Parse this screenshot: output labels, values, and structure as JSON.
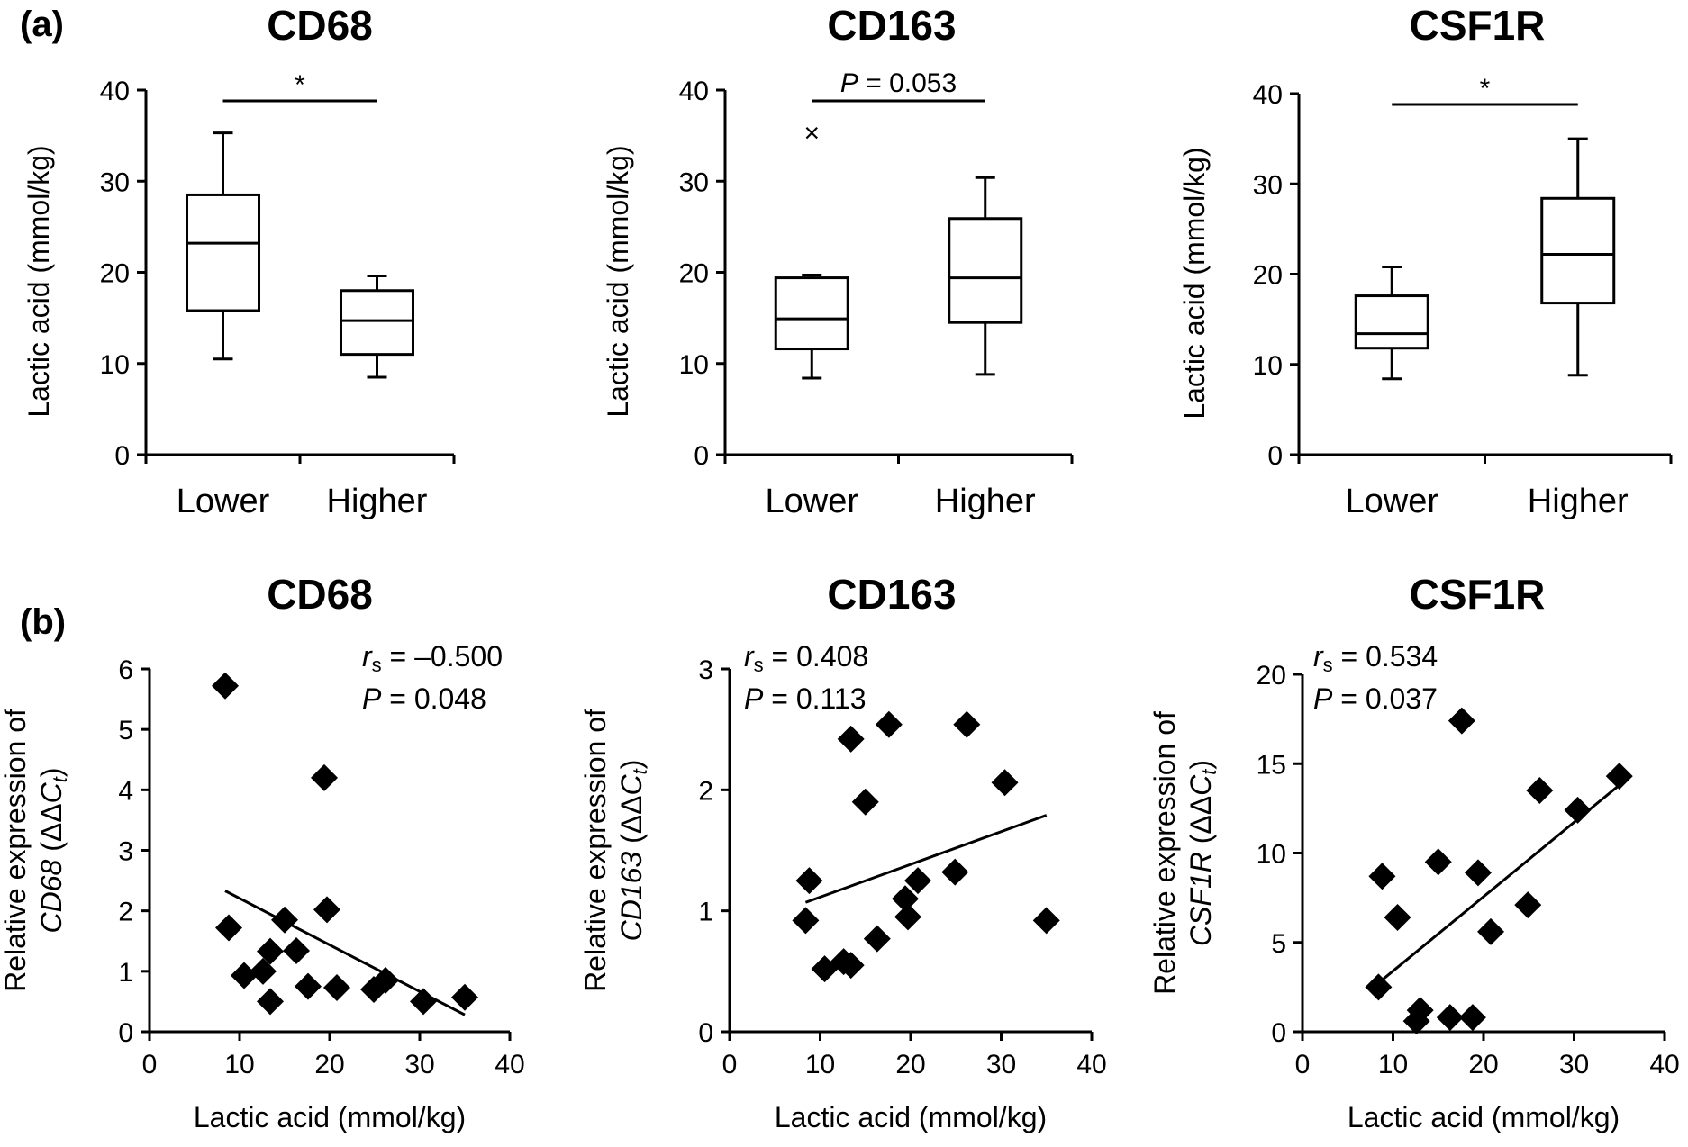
{
  "panel_labels": {
    "a": "(a)",
    "b": "(b)"
  },
  "chart_data": [
    {
      "type": "box",
      "panel": "(a)",
      "title": "CD68",
      "categories": [
        "Lower",
        "Higher"
      ],
      "ylabel": "Lactic acid (mmol/kg)",
      "ylim": [
        0,
        40
      ],
      "yticks": [
        0,
        10,
        20,
        30,
        40
      ],
      "boxes": [
        {
          "category": "Lower",
          "min": 10.5,
          "q1": 15.8,
          "median": 23.2,
          "q3": 28.5,
          "max": 35.3
        },
        {
          "category": "Higher",
          "min": 8.5,
          "q1": 11,
          "median": 14.7,
          "q3": 18,
          "max": 19.6
        }
      ],
      "outliers": [],
      "significance": "*"
    },
    {
      "type": "box",
      "panel": "(a)",
      "title": "CD163",
      "categories": [
        "Lower",
        "Higher"
      ],
      "ylabel": "Lactic acid (mmol/kg)",
      "ylim": [
        0,
        40
      ],
      "yticks": [
        0,
        10,
        20,
        30,
        40
      ],
      "boxes": [
        {
          "category": "Lower",
          "min": 8.4,
          "q1": 11.6,
          "median": 14.9,
          "q3": 19.4,
          "max": 19.7
        },
        {
          "category": "Higher",
          "min": 8.8,
          "q1": 14.5,
          "median": 19.4,
          "q3": 25.9,
          "max": 30.4
        }
      ],
      "outliers": [
        {
          "category": "Lower",
          "value": 35.3
        }
      ],
      "significance": "P = 0.053"
    },
    {
      "type": "box",
      "panel": "(a)",
      "title": "CSF1R",
      "categories": [
        "Lower",
        "Higher"
      ],
      "ylabel": "Lactic acid (mmol/kg)",
      "ylim": [
        0,
        40
      ],
      "yticks": [
        0,
        10,
        20,
        30,
        40
      ],
      "boxes": [
        {
          "category": "Lower",
          "min": 8.4,
          "q1": 11.8,
          "median": 13.4,
          "q3": 17.6,
          "max": 20.8
        },
        {
          "category": "Higher",
          "min": 8.8,
          "q1": 16.8,
          "median": 22.2,
          "q3": 28.4,
          "max": 35
        }
      ],
      "outliers": [],
      "significance": "*"
    },
    {
      "type": "scatter",
      "panel": "(b)",
      "title": "CD68",
      "xlabel": "Lactic acid (mmol/kg)",
      "ylabel_line1": "Relative expression of",
      "ylabel_gene": "CD68",
      "xlim": [
        0,
        40
      ],
      "xticks": [
        0,
        10,
        20,
        30,
        40
      ],
      "ylim": [
        0,
        6
      ],
      "yticks": [
        0,
        1,
        2,
        3,
        4,
        5,
        6
      ],
      "rs_value": "= –0.500",
      "p_value": "= 0.048",
      "points": [
        {
          "x": 8.4,
          "y": 5.72
        },
        {
          "x": 8.8,
          "y": 1.72
        },
        {
          "x": 10.5,
          "y": 0.93
        },
        {
          "x": 12.6,
          "y": 1.0
        },
        {
          "x": 13.4,
          "y": 0.5
        },
        {
          "x": 13.4,
          "y": 1.33
        },
        {
          "x": 15.0,
          "y": 1.85
        },
        {
          "x": 16.3,
          "y": 1.34
        },
        {
          "x": 17.6,
          "y": 0.75
        },
        {
          "x": 19.4,
          "y": 4.2
        },
        {
          "x": 19.7,
          "y": 2.02
        },
        {
          "x": 20.8,
          "y": 0.73
        },
        {
          "x": 24.9,
          "y": 0.7
        },
        {
          "x": 26.2,
          "y": 0.85
        },
        {
          "x": 30.4,
          "y": 0.5
        },
        {
          "x": 35.0,
          "y": 0.57
        }
      ],
      "trendline": [
        {
          "x": 8.4,
          "y": 2.33
        },
        {
          "x": 35.0,
          "y": 0.28
        }
      ]
    },
    {
      "type": "scatter",
      "panel": "(b)",
      "title": "CD163",
      "xlabel": "Lactic acid (mmol/kg)",
      "ylabel_line1": "Relative expression of",
      "ylabel_gene": "CD163",
      "xlim": [
        0,
        40
      ],
      "xticks": [
        0,
        10,
        20,
        30,
        40
      ],
      "ylim": [
        0,
        3
      ],
      "yticks": [
        0,
        1,
        2,
        3
      ],
      "rs_value": "= 0.408",
      "p_value": "= 0.113",
      "points": [
        {
          "x": 8.4,
          "y": 0.92
        },
        {
          "x": 8.8,
          "y": 1.25
        },
        {
          "x": 10.5,
          "y": 0.52
        },
        {
          "x": 12.6,
          "y": 0.58
        },
        {
          "x": 13.4,
          "y": 0.55
        },
        {
          "x": 13.4,
          "y": 2.42
        },
        {
          "x": 15.0,
          "y": 1.9
        },
        {
          "x": 16.3,
          "y": 0.77
        },
        {
          "x": 17.6,
          "y": 2.54
        },
        {
          "x": 19.4,
          "y": 1.1
        },
        {
          "x": 19.7,
          "y": 0.95
        },
        {
          "x": 20.8,
          "y": 1.25
        },
        {
          "x": 24.9,
          "y": 1.32
        },
        {
          "x": 26.2,
          "y": 2.54
        },
        {
          "x": 30.4,
          "y": 2.06
        },
        {
          "x": 35.0,
          "y": 0.92
        }
      ],
      "trendline": [
        {
          "x": 8.4,
          "y": 1.07
        },
        {
          "x": 35.0,
          "y": 1.79
        }
      ]
    },
    {
      "type": "scatter",
      "panel": "(b)",
      "title": "CSF1R",
      "xlabel": "Lactic acid (mmol/kg)",
      "ylabel_line1": "Relative expression of",
      "ylabel_gene": "CSF1R",
      "xlim": [
        0,
        40
      ],
      "xticks": [
        0,
        10,
        20,
        30,
        40
      ],
      "ylim": [
        0,
        20
      ],
      "yticks": [
        0,
        5,
        10,
        15,
        20
      ],
      "rs_value": "= 0.534",
      "p_value": "= 0.037",
      "points": [
        {
          "x": 8.4,
          "y": 2.5
        },
        {
          "x": 8.8,
          "y": 8.7
        },
        {
          "x": 10.5,
          "y": 6.4
        },
        {
          "x": 12.6,
          "y": 0.6
        },
        {
          "x": 13.0,
          "y": 1.2
        },
        {
          "x": 15.0,
          "y": 9.5
        },
        {
          "x": 16.3,
          "y": 0.8
        },
        {
          "x": 17.6,
          "y": 17.4
        },
        {
          "x": 18.8,
          "y": 0.8
        },
        {
          "x": 19.4,
          "y": 8.9
        },
        {
          "x": 20.8,
          "y": 5.6
        },
        {
          "x": 24.9,
          "y": 7.1
        },
        {
          "x": 26.2,
          "y": 13.5
        },
        {
          "x": 30.4,
          "y": 12.4
        },
        {
          "x": 35.0,
          "y": 14.3
        }
      ],
      "trendline": [
        {
          "x": 8.8,
          "y": 2.9
        },
        {
          "x": 35.0,
          "y": 13.8
        }
      ]
    }
  ]
}
